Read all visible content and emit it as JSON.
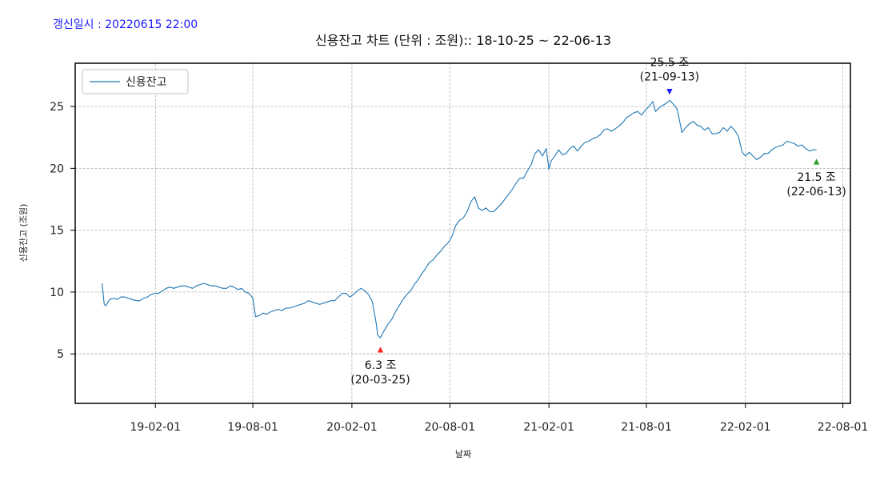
{
  "header": {
    "update_text": "갱신일시 : 20220615 22:00"
  },
  "chart_data": {
    "type": "line",
    "title": "신용잔고 차트 (단위 : 조원):: 18-10-25 ~ 22-06-13",
    "xlabel": "날짜",
    "ylabel": "신용잔고 (조원)",
    "xlim": [
      "2018-09-05",
      "2022-08-15"
    ],
    "ylim": [
      1.0,
      28.5
    ],
    "grid": true,
    "legend_position": "top-left",
    "x_ticks": [
      "2019-02-01",
      "2019-08-01",
      "2020-02-01",
      "2020-08-01",
      "2021-02-01",
      "2021-08-01",
      "2022-02-01",
      "2022-08-01"
    ],
    "x_tick_labels": [
      "19-02-01",
      "19-08-01",
      "20-02-01",
      "20-08-01",
      "21-02-01",
      "21-08-01",
      "22-02-01",
      "22-08-01"
    ],
    "y_ticks": [
      5,
      10,
      15,
      20,
      25
    ],
    "colors": {
      "line": "#1f77b4",
      "min_marker": "#ff2020",
      "max_marker": "#1a1aff",
      "last_marker": "#2ca02c",
      "grid": "#b0b0b0"
    },
    "series": [
      {
        "name": "신용잔고",
        "points": [
          [
            "2018-10-25",
            10.7
          ],
          [
            "2018-10-29",
            9.0
          ],
          [
            "2018-11-01",
            8.9
          ],
          [
            "2018-11-08",
            9.4
          ],
          [
            "2018-11-15",
            9.5
          ],
          [
            "2018-11-22",
            9.4
          ],
          [
            "2018-11-29",
            9.6
          ],
          [
            "2018-12-06",
            9.6
          ],
          [
            "2018-12-13",
            9.5
          ],
          [
            "2018-12-20",
            9.4
          ],
          [
            "2018-12-27",
            9.3
          ],
          [
            "2019-01-03",
            9.3
          ],
          [
            "2019-01-10",
            9.5
          ],
          [
            "2019-01-17",
            9.6
          ],
          [
            "2019-01-24",
            9.8
          ],
          [
            "2019-01-31",
            9.9
          ],
          [
            "2019-02-07",
            9.9
          ],
          [
            "2019-02-14",
            10.1
          ],
          [
            "2019-02-21",
            10.3
          ],
          [
            "2019-02-28",
            10.4
          ],
          [
            "2019-03-07",
            10.3
          ],
          [
            "2019-03-14",
            10.4
          ],
          [
            "2019-03-21",
            10.5
          ],
          [
            "2019-03-28",
            10.5
          ],
          [
            "2019-04-04",
            10.4
          ],
          [
            "2019-04-11",
            10.3
          ],
          [
            "2019-04-18",
            10.5
          ],
          [
            "2019-04-25",
            10.6
          ],
          [
            "2019-05-02",
            10.7
          ],
          [
            "2019-05-09",
            10.6
          ],
          [
            "2019-05-16",
            10.5
          ],
          [
            "2019-05-23",
            10.5
          ],
          [
            "2019-05-30",
            10.4
          ],
          [
            "2019-06-06",
            10.3
          ],
          [
            "2019-06-13",
            10.3
          ],
          [
            "2019-06-20",
            10.5
          ],
          [
            "2019-06-27",
            10.4
          ],
          [
            "2019-07-04",
            10.2
          ],
          [
            "2019-07-11",
            10.3
          ],
          [
            "2019-07-18",
            10.0
          ],
          [
            "2019-07-25",
            9.9
          ],
          [
            "2019-08-01",
            9.5
          ],
          [
            "2019-08-06",
            8.0
          ],
          [
            "2019-08-13",
            8.1
          ],
          [
            "2019-08-20",
            8.3
          ],
          [
            "2019-08-27",
            8.2
          ],
          [
            "2019-09-03",
            8.4
          ],
          [
            "2019-09-10",
            8.5
          ],
          [
            "2019-09-17",
            8.6
          ],
          [
            "2019-09-24",
            8.5
          ],
          [
            "2019-10-01",
            8.7
          ],
          [
            "2019-10-08",
            8.7
          ],
          [
            "2019-10-15",
            8.8
          ],
          [
            "2019-10-22",
            8.9
          ],
          [
            "2019-10-29",
            9.0
          ],
          [
            "2019-11-05",
            9.1
          ],
          [
            "2019-11-12",
            9.3
          ],
          [
            "2019-11-19",
            9.2
          ],
          [
            "2019-11-26",
            9.1
          ],
          [
            "2019-12-03",
            9.0
          ],
          [
            "2019-12-10",
            9.1
          ],
          [
            "2019-12-17",
            9.2
          ],
          [
            "2019-12-24",
            9.3
          ],
          [
            "2019-12-31",
            9.3
          ],
          [
            "2020-01-07",
            9.6
          ],
          [
            "2020-01-14",
            9.9
          ],
          [
            "2020-01-21",
            9.9
          ],
          [
            "2020-01-28",
            9.6
          ],
          [
            "2020-02-04",
            9.8
          ],
          [
            "2020-02-11",
            10.1
          ],
          [
            "2020-02-18",
            10.3
          ],
          [
            "2020-02-25",
            10.1
          ],
          [
            "2020-03-03",
            9.8
          ],
          [
            "2020-03-10",
            9.2
          ],
          [
            "2020-03-17",
            7.5
          ],
          [
            "2020-03-20",
            6.5
          ],
          [
            "2020-03-25",
            6.3
          ],
          [
            "2020-04-01",
            6.9
          ],
          [
            "2020-04-08",
            7.4
          ],
          [
            "2020-04-15",
            7.8
          ],
          [
            "2020-04-22",
            8.4
          ],
          [
            "2020-04-29",
            8.9
          ],
          [
            "2020-05-06",
            9.4
          ],
          [
            "2020-05-13",
            9.8
          ],
          [
            "2020-05-20",
            10.1
          ],
          [
            "2020-05-27",
            10.6
          ],
          [
            "2020-06-03",
            11.0
          ],
          [
            "2020-06-10",
            11.5
          ],
          [
            "2020-06-17",
            11.9
          ],
          [
            "2020-06-24",
            12.4
          ],
          [
            "2020-07-01",
            12.6
          ],
          [
            "2020-07-08",
            13.0
          ],
          [
            "2020-07-15",
            13.3
          ],
          [
            "2020-07-22",
            13.7
          ],
          [
            "2020-07-29",
            14.0
          ],
          [
            "2020-08-05",
            14.5
          ],
          [
            "2020-08-12",
            15.4
          ],
          [
            "2020-08-19",
            15.8
          ],
          [
            "2020-08-26",
            16.0
          ],
          [
            "2020-09-02",
            16.5
          ],
          [
            "2020-09-09",
            17.3
          ],
          [
            "2020-09-16",
            17.7
          ],
          [
            "2020-09-23",
            16.8
          ],
          [
            "2020-09-30",
            16.6
          ],
          [
            "2020-10-07",
            16.8
          ],
          [
            "2020-10-14",
            16.5
          ],
          [
            "2020-10-21",
            16.5
          ],
          [
            "2020-10-28",
            16.8
          ],
          [
            "2020-11-04",
            17.1
          ],
          [
            "2020-11-11",
            17.5
          ],
          [
            "2020-11-18",
            17.9
          ],
          [
            "2020-11-25",
            18.3
          ],
          [
            "2020-12-02",
            18.8
          ],
          [
            "2020-12-09",
            19.2
          ],
          [
            "2020-12-16",
            19.2
          ],
          [
            "2020-12-23",
            19.8
          ],
          [
            "2020-12-30",
            20.3
          ],
          [
            "2021-01-06",
            21.2
          ],
          [
            "2021-01-13",
            21.5
          ],
          [
            "2021-01-20",
            21.0
          ],
          [
            "2021-01-27",
            21.6
          ],
          [
            "2021-02-01",
            19.9
          ],
          [
            "2021-02-05",
            20.6
          ],
          [
            "2021-02-12",
            21.0
          ],
          [
            "2021-02-19",
            21.5
          ],
          [
            "2021-02-26",
            21.1
          ],
          [
            "2021-03-05",
            21.2
          ],
          [
            "2021-03-12",
            21.6
          ],
          [
            "2021-03-19",
            21.8
          ],
          [
            "2021-03-26",
            21.4
          ],
          [
            "2021-04-02",
            21.8
          ],
          [
            "2021-04-09",
            22.1
          ],
          [
            "2021-04-16",
            22.2
          ],
          [
            "2021-04-23",
            22.4
          ],
          [
            "2021-04-30",
            22.5
          ],
          [
            "2021-05-07",
            22.7
          ],
          [
            "2021-05-14",
            23.1
          ],
          [
            "2021-05-21",
            23.2
          ],
          [
            "2021-05-28",
            23.0
          ],
          [
            "2021-06-04",
            23.2
          ],
          [
            "2021-06-11",
            23.4
          ],
          [
            "2021-06-18",
            23.7
          ],
          [
            "2021-06-25",
            24.1
          ],
          [
            "2021-07-02",
            24.3
          ],
          [
            "2021-07-09",
            24.5
          ],
          [
            "2021-07-16",
            24.6
          ],
          [
            "2021-07-23",
            24.3
          ],
          [
            "2021-07-30",
            24.7
          ],
          [
            "2021-08-06",
            25.0
          ],
          [
            "2021-08-13",
            25.4
          ],
          [
            "2021-08-18",
            24.6
          ],
          [
            "2021-08-25",
            24.9
          ],
          [
            "2021-09-01",
            25.1
          ],
          [
            "2021-09-08",
            25.3
          ],
          [
            "2021-09-13",
            25.5
          ],
          [
            "2021-09-20",
            25.2
          ],
          [
            "2021-09-27",
            24.8
          ],
          [
            "2021-10-01",
            24.0
          ],
          [
            "2021-10-06",
            22.9
          ],
          [
            "2021-10-13",
            23.3
          ],
          [
            "2021-10-20",
            23.6
          ],
          [
            "2021-10-27",
            23.8
          ],
          [
            "2021-11-03",
            23.5
          ],
          [
            "2021-11-10",
            23.4
          ],
          [
            "2021-11-17",
            23.1
          ],
          [
            "2021-11-24",
            23.3
          ],
          [
            "2021-12-01",
            22.8
          ],
          [
            "2021-12-08",
            22.8
          ],
          [
            "2021-12-15",
            22.9
          ],
          [
            "2021-12-22",
            23.3
          ],
          [
            "2021-12-29",
            23.0
          ],
          [
            "2022-01-05",
            23.4
          ],
          [
            "2022-01-12",
            23.1
          ],
          [
            "2022-01-19",
            22.6
          ],
          [
            "2022-01-26",
            21.3
          ],
          [
            "2022-02-01",
            21.0
          ],
          [
            "2022-02-08",
            21.3
          ],
          [
            "2022-02-15",
            21.0
          ],
          [
            "2022-02-22",
            20.7
          ],
          [
            "2022-03-01",
            20.9
          ],
          [
            "2022-03-08",
            21.2
          ],
          [
            "2022-03-15",
            21.2
          ],
          [
            "2022-03-22",
            21.5
          ],
          [
            "2022-03-29",
            21.7
          ],
          [
            "2022-04-05",
            21.8
          ],
          [
            "2022-04-12",
            21.9
          ],
          [
            "2022-04-19",
            22.2
          ],
          [
            "2022-04-26",
            22.1
          ],
          [
            "2022-05-03",
            22.0
          ],
          [
            "2022-05-10",
            21.8
          ],
          [
            "2022-05-17",
            21.9
          ],
          [
            "2022-05-24",
            21.6
          ],
          [
            "2022-05-31",
            21.4
          ],
          [
            "2022-06-07",
            21.5
          ],
          [
            "2022-06-13",
            21.5
          ]
        ]
      }
    ],
    "annotations": [
      {
        "date": "2020-03-25",
        "value": 6.3,
        "value_label": "6.3 조",
        "date_label": "(20-03-25)",
        "marker_color": "#ff2020",
        "position": "below"
      },
      {
        "date": "2021-09-13",
        "value": 25.5,
        "value_label": "25.5 조",
        "date_label": "(21-09-13)",
        "marker_color": "#1a1aff",
        "position": "above"
      },
      {
        "date": "2022-06-13",
        "value": 21.5,
        "value_label": "21.5 조",
        "date_label": "(22-06-13)",
        "marker_color": "#2ca02c",
        "position": "below"
      }
    ]
  }
}
